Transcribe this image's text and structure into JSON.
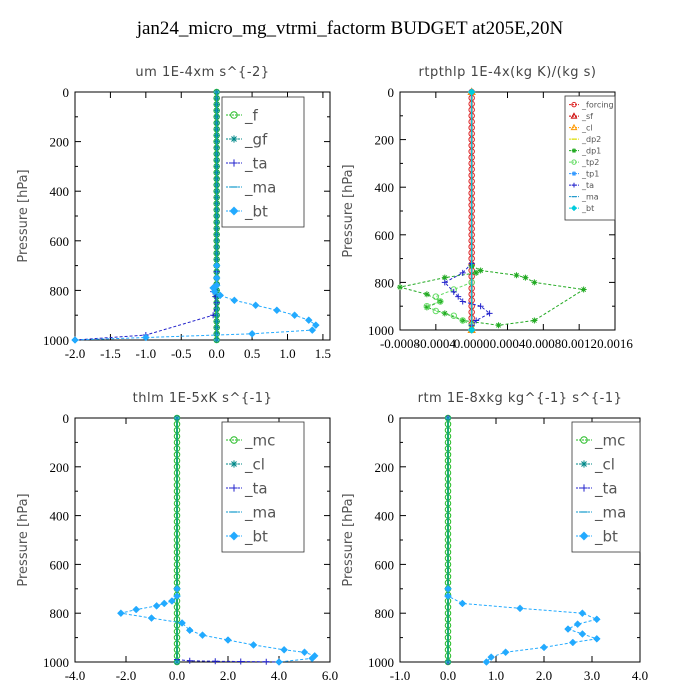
{
  "page": {
    "title": "jan24_micro_mg_vtrmi_factorm  BUDGET at205E,20N"
  },
  "chart_data": [
    {
      "type": "line",
      "title": "um   1E-4xm s^{-2}",
      "ylabel": "Pressure [hPa]",
      "xlim": [
        -2.0,
        1.6
      ],
      "ylim": [
        1000,
        0
      ],
      "xticks": [
        "-2.0",
        "-1.5",
        "-1.0",
        "-0.5",
        "0.0",
        "0.5",
        "1.0",
        "1.5"
      ],
      "xtick_values": [
        -2.0,
        -1.5,
        -1.0,
        -0.5,
        0.0,
        0.5,
        1.0,
        1.5
      ],
      "yticks": [
        "0",
        "200",
        "400",
        "600",
        "800",
        "1000"
      ],
      "ytick_values": [
        0,
        200,
        400,
        600,
        800,
        1000
      ],
      "legend": "top-right",
      "series": [
        {
          "name": "_f",
          "color": "#22bb22",
          "marker": "circle",
          "x": [
            0,
            0,
            0,
            0,
            0,
            0,
            0,
            0,
            0,
            0,
            0,
            0,
            0,
            0,
            0,
            0,
            0,
            0,
            0,
            0,
            0,
            0,
            0,
            0,
            0,
            0,
            0,
            0,
            0,
            0,
            0,
            0,
            0,
            0,
            0,
            0,
            0,
            0,
            0,
            0,
            0
          ],
          "y": [
            0,
            25,
            50,
            75,
            100,
            125,
            150,
            175,
            200,
            225,
            250,
            275,
            300,
            325,
            350,
            375,
            400,
            425,
            450,
            475,
            500,
            525,
            550,
            575,
            600,
            625,
            650,
            675,
            700,
            725,
            750,
            775,
            800,
            825,
            850,
            875,
            900,
            925,
            950,
            975,
            1000
          ]
        },
        {
          "name": "_gf",
          "color": "#008888",
          "marker": "star",
          "x": [
            0,
            0,
            0,
            0,
            0,
            0,
            0,
            0,
            0,
            0,
            0,
            0,
            0,
            0,
            0,
            0,
            0,
            0,
            0,
            0,
            0,
            0,
            0,
            0,
            0,
            0,
            0,
            0,
            0,
            0,
            0,
            0,
            0,
            0,
            0,
            0,
            0,
            0,
            0,
            0,
            0
          ],
          "y": [
            0,
            25,
            50,
            75,
            100,
            125,
            150,
            175,
            200,
            225,
            250,
            275,
            300,
            325,
            350,
            375,
            400,
            425,
            450,
            475,
            500,
            525,
            550,
            575,
            600,
            625,
            650,
            675,
            700,
            725,
            750,
            775,
            800,
            825,
            850,
            875,
            900,
            925,
            950,
            975,
            1000
          ]
        },
        {
          "name": "_ta",
          "color": "#2222cc",
          "marker": "plus",
          "x": [
            0,
            0,
            0,
            0,
            -0.03,
            -0.05,
            -0.02,
            0,
            -0.05,
            -1.0,
            -2.0
          ],
          "y": [
            700,
            725,
            750,
            775,
            790,
            805,
            825,
            850,
            900,
            980,
            1000
          ]
        },
        {
          "name": "_ma",
          "color": "#1199cc",
          "marker": "dash",
          "x": [
            0,
            0
          ],
          "y": [
            0,
            1000
          ]
        },
        {
          "name": "_bt",
          "color": "#22aaff",
          "marker": "diamond",
          "x": [
            0,
            0,
            0,
            -0.05,
            -0.03,
            0.05,
            0.25,
            0.55,
            0.85,
            1.1,
            1.3,
            1.4,
            1.35,
            0.5,
            -1.0,
            -2.0
          ],
          "y": [
            700,
            750,
            780,
            790,
            805,
            820,
            840,
            860,
            880,
            900,
            920,
            940,
            960,
            975,
            990,
            1000
          ]
        }
      ]
    },
    {
      "type": "line",
      "title": "rtpthlp   1E-4x(kg K)/(kg s)",
      "ylabel": "Pressure [hPa]",
      "xlim": [
        -0.0008,
        0.0016
      ],
      "ylim": [
        1000,
        0
      ],
      "xticks": [
        "-0.0008",
        "-0.0004",
        "0.0000",
        "0.0004",
        "0.0008",
        "0.0012",
        "0.0016"
      ],
      "xtick_values": [
        -0.0008,
        -0.0004,
        0.0,
        0.0004,
        0.0008,
        0.0012,
        0.0016
      ],
      "yticks": [
        "0",
        "200",
        "400",
        "600",
        "800",
        "1000"
      ],
      "ytick_values": [
        0,
        200,
        400,
        600,
        800,
        1000
      ],
      "legend": "top-right",
      "series": [
        {
          "name": "_forcing",
          "color": "#dd2222",
          "marker": "circle",
          "x": [
            0,
            0,
            0,
            0,
            0,
            0,
            0,
            0,
            0,
            0,
            0,
            0,
            0,
            0,
            0,
            0,
            0,
            0,
            0,
            0,
            0,
            0,
            0,
            0,
            0,
            0,
            0,
            0,
            0,
            0,
            0,
            0,
            0,
            0,
            0,
            0,
            0,
            0,
            0,
            0,
            0
          ],
          "y": [
            0,
            25,
            50,
            75,
            100,
            125,
            150,
            175,
            200,
            225,
            250,
            275,
            300,
            325,
            350,
            375,
            400,
            425,
            450,
            475,
            500,
            525,
            550,
            575,
            600,
            625,
            650,
            675,
            700,
            725,
            750,
            775,
            800,
            825,
            850,
            875,
            900,
            925,
            950,
            975,
            1000
          ]
        },
        {
          "name": "_sf",
          "color": "#cc0000",
          "marker": "triangle",
          "x": [
            0,
            0
          ],
          "y": [
            0,
            1000
          ]
        },
        {
          "name": "_cl",
          "color": "#ff9900",
          "marker": "triangle",
          "x": [
            0,
            0
          ],
          "y": [
            0,
            1000
          ]
        },
        {
          "name": "_dp2",
          "color": "#dddd00",
          "marker": "dash",
          "x": [
            0,
            0
          ],
          "y": [
            0,
            1000
          ]
        },
        {
          "name": "_dp1",
          "color": "#22aa22",
          "marker": "star",
          "x": [
            0,
            5e-05,
            -0.0003,
            -0.0008,
            -0.0005,
            -0.00035,
            -0.0005,
            -0.0003,
            -0.0001,
            0.0003,
            0.0007,
            0.00125,
            0.0007,
            0.0006,
            0.0005,
            0.0001,
            0
          ],
          "y": [
            730,
            760,
            780,
            820,
            850,
            880,
            905,
            930,
            960,
            980,
            960,
            830,
            800,
            780,
            770,
            750,
            730
          ]
        },
        {
          "name": "_tp2",
          "color": "#66dd66",
          "marker": "circle",
          "x": [
            0,
            -0.0002,
            -0.0004,
            -0.00035,
            -0.0005,
            -0.0004,
            -0.0002,
            -0.0001,
            0
          ],
          "y": [
            800,
            830,
            860,
            880,
            900,
            920,
            940,
            960,
            980
          ]
        },
        {
          "name": "_tp1",
          "color": "#3399ff",
          "marker": "star",
          "x": [
            0,
            0
          ],
          "y": [
            0,
            1000
          ]
        },
        {
          "name": "_ta",
          "color": "#2222cc",
          "marker": "plus",
          "x": [
            0,
            -0.0001,
            -0.0003,
            -0.0002,
            -0.00015,
            -0.0001,
            0.0001,
            0.0002,
            5e-05,
            0
          ],
          "y": [
            720,
            760,
            800,
            840,
            860,
            880,
            900,
            930,
            960,
            980
          ]
        },
        {
          "name": "_ma",
          "color": "#2299cc",
          "marker": "dash",
          "x": [
            0,
            0
          ],
          "y": [
            0,
            1000
          ]
        },
        {
          "name": "_bt",
          "color": "#00ccdd",
          "marker": "diamond",
          "x": [
            0,
            0
          ],
          "y": [
            0,
            1000
          ]
        }
      ]
    },
    {
      "type": "line",
      "title": "thlm   1E-5xK s^{-1}",
      "ylabel": "Pressure [hPa]",
      "xlim": [
        -4.0,
        6.0
      ],
      "ylim": [
        1000,
        0
      ],
      "xticks": [
        "-4.0",
        "-2.0",
        "0.0",
        "2.0",
        "4.0",
        "6.0"
      ],
      "xtick_values": [
        -4.0,
        -2.0,
        0.0,
        2.0,
        4.0,
        6.0
      ],
      "yticks": [
        "0",
        "200",
        "400",
        "600",
        "800",
        "1000"
      ],
      "ytick_values": [
        0,
        200,
        400,
        600,
        800,
        1000
      ],
      "legend": "top-right",
      "series": [
        {
          "name": "_mc",
          "color": "#22bb22",
          "marker": "circle",
          "x": [
            0,
            0,
            0,
            0,
            0,
            0,
            0,
            0,
            0,
            0,
            0,
            0,
            0,
            0,
            0,
            0,
            0,
            0,
            0,
            0,
            0,
            0,
            0,
            0,
            0,
            0,
            0,
            0,
            0,
            0,
            0,
            0,
            0,
            0,
            0,
            0,
            0,
            0,
            0,
            0,
            0
          ],
          "y": [
            0,
            25,
            50,
            75,
            100,
            125,
            150,
            175,
            200,
            225,
            250,
            275,
            300,
            325,
            350,
            375,
            400,
            425,
            450,
            475,
            500,
            525,
            550,
            575,
            600,
            625,
            650,
            675,
            700,
            725,
            750,
            775,
            800,
            825,
            850,
            875,
            900,
            925,
            950,
            975,
            1000
          ]
        },
        {
          "name": "_cl",
          "color": "#008888",
          "marker": "star",
          "x": [
            0,
            0
          ],
          "y": [
            0,
            1000
          ]
        },
        {
          "name": "_ta",
          "color": "#2222cc",
          "marker": "plus",
          "x": [
            0,
            0.5,
            1.5,
            2.5,
            3.5,
            4.0
          ],
          "y": [
            990,
            995,
            997,
            998,
            999,
            1000
          ]
        },
        {
          "name": "_ma",
          "color": "#1199cc",
          "marker": "dash",
          "x": [
            0,
            0
          ],
          "y": [
            0,
            1000
          ]
        },
        {
          "name": "_bt",
          "color": "#22aaff",
          "marker": "diamond",
          "x": [
            0,
            0,
            -0.2,
            -0.5,
            -0.8,
            -1.6,
            -2.2,
            -1.0,
            0.2,
            0.5,
            1.0,
            2.0,
            3.0,
            4.2,
            5.0,
            5.4,
            5.3,
            4.0
          ],
          "y": [
            700,
            730,
            750,
            760,
            770,
            785,
            800,
            820,
            840,
            870,
            890,
            910,
            930,
            950,
            960,
            975,
            985,
            1000
          ]
        }
      ]
    },
    {
      "type": "line",
      "title": "rtm   1E-8xkg kg^{-1} s^{-1}",
      "ylabel": "Pressure [hPa]",
      "xlim": [
        -1.0,
        4.0
      ],
      "ylim": [
        1000,
        0
      ],
      "xticks": [
        "-1.0",
        "0.0",
        "1.0",
        "2.0",
        "3.0",
        "4.0"
      ],
      "xtick_values": [
        -1.0,
        0.0,
        1.0,
        2.0,
        3.0,
        4.0
      ],
      "yticks": [
        "0",
        "200",
        "400",
        "600",
        "800",
        "1000"
      ],
      "ytick_values": [
        0,
        200,
        400,
        600,
        800,
        1000
      ],
      "legend": "top-right",
      "series": [
        {
          "name": "_mc",
          "color": "#22bb22",
          "marker": "circle",
          "x": [
            0,
            0,
            0,
            0,
            0,
            0,
            0,
            0,
            0,
            0,
            0,
            0,
            0,
            0,
            0,
            0,
            0,
            0,
            0,
            0,
            0,
            0,
            0,
            0,
            0,
            0,
            0,
            0,
            0,
            0,
            0,
            0,
            0,
            0,
            0,
            0,
            0,
            0,
            0,
            0,
            0
          ],
          "y": [
            0,
            25,
            50,
            75,
            100,
            125,
            150,
            175,
            200,
            225,
            250,
            275,
            300,
            325,
            350,
            375,
            400,
            425,
            450,
            475,
            500,
            525,
            550,
            575,
            600,
            625,
            650,
            675,
            700,
            725,
            750,
            775,
            800,
            825,
            850,
            875,
            900,
            925,
            950,
            975,
            1000
          ]
        },
        {
          "name": "_cl",
          "color": "#008888",
          "marker": "star",
          "x": [
            0,
            0
          ],
          "y": [
            0,
            1000
          ]
        },
        {
          "name": "_ta",
          "color": "#2222cc",
          "marker": "plus",
          "x": [
            0,
            0
          ],
          "y": [
            0,
            1000
          ]
        },
        {
          "name": "_ma",
          "color": "#1199cc",
          "marker": "dash",
          "x": [
            0,
            0
          ],
          "y": [
            0,
            1000
          ]
        },
        {
          "name": "_bt",
          "color": "#22aaff",
          "marker": "diamond",
          "x": [
            0,
            0,
            0.3,
            1.5,
            2.8,
            3.1,
            2.7,
            2.5,
            2.8,
            3.1,
            2.6,
            2.0,
            1.2,
            0.9,
            0.8
          ],
          "y": [
            700,
            730,
            760,
            780,
            800,
            825,
            845,
            865,
            885,
            905,
            920,
            940,
            960,
            980,
            1000
          ]
        }
      ]
    }
  ]
}
